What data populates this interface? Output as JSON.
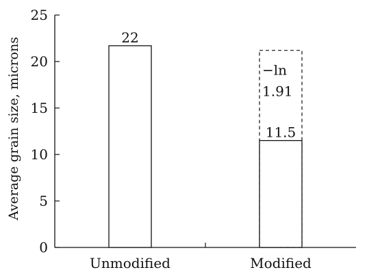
{
  "chart_data": {
    "type": "bar",
    "title": "",
    "xlabel": "",
    "ylabel": "Average grain size, microns",
    "ylim": [
      0,
      25
    ],
    "yticks": [
      0,
      5,
      10,
      15,
      20,
      25
    ],
    "grid": false,
    "categories": [
      "Unmodified",
      "Modified"
    ],
    "values": [
      21.7,
      11.5
    ],
    "data_labels": [
      "22",
      "11.5"
    ],
    "dashed_bar": {
      "category": "Modified",
      "value": 21.2,
      "label_line1": "−ln",
      "label_line2": "1.91"
    }
  }
}
